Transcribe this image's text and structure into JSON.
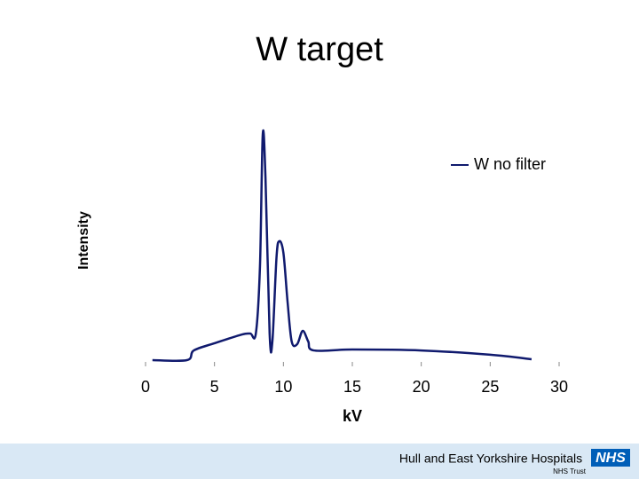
{
  "chart_data": {
    "type": "line",
    "title": "W target",
    "x_label": "kV",
    "y_label": "Intensity",
    "x": [
      0.5,
      3,
      3.5,
      5,
      7,
      7.6,
      8.0,
      8.3,
      8.5,
      8.7,
      9.0,
      9.2,
      9.5,
      9.7,
      10.0,
      10.3,
      10.6,
      11.0,
      11.4,
      11.8,
      12.2,
      15,
      20,
      25,
      28
    ],
    "series": [
      {
        "name": "W no filter",
        "color": "#101a6e",
        "values": [
          0,
          0,
          4.3,
          7.5,
          11.4,
          11.8,
          11.8,
          41.7,
          100,
          81,
          11.8,
          8.3,
          45.7,
          52.8,
          47.6,
          26,
          8.3,
          7.1,
          13,
          8.3,
          4.3,
          4.7,
          4.3,
          2.4,
          0.4
        ]
      }
    ],
    "xlim": [
      0,
      30
    ],
    "xticks": [
      0,
      5,
      10,
      15,
      20,
      25,
      30
    ],
    "ylim": [
      0,
      100
    ],
    "legend": "top-right"
  },
  "footer": {
    "organization": "Hull and East Yorkshire Hospitals",
    "logo": "NHS",
    "subtitle": "NHS Trust"
  }
}
